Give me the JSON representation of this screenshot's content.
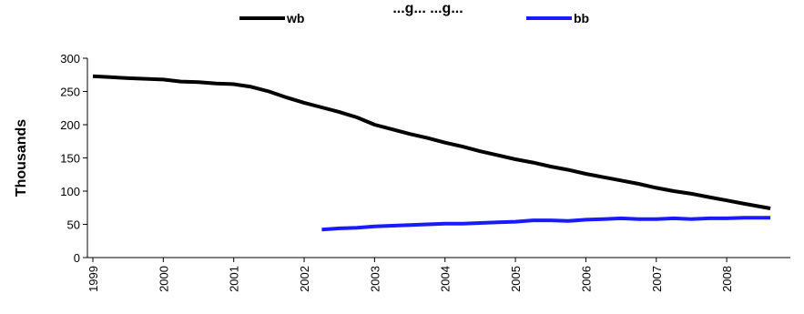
{
  "chart_data": {
    "type": "line",
    "title": "...g... ...g...",
    "ylabel": "Thousands",
    "xlabel": "",
    "ylim": [
      0,
      300
    ],
    "yticks": [
      "0",
      "50",
      "100",
      "150",
      "200",
      "250",
      "300"
    ],
    "xlim": [
      1999,
      2008.8
    ],
    "xticks": [
      "1999",
      "2000",
      "2001",
      "2002",
      "2003",
      "2004",
      "2005",
      "2006",
      "2007",
      "2008"
    ],
    "grid": false,
    "legend_position": "top",
    "series": [
      {
        "name": "wb",
        "color": "#000000",
        "x": [
          1999.0,
          1999.5,
          2000.0,
          2000.25,
          2000.5,
          2000.75,
          2001.0,
          2001.25,
          2001.5,
          2001.75,
          2002.0,
          2002.25,
          2002.5,
          2002.75,
          2003.0,
          2003.25,
          2003.5,
          2003.75,
          2004.0,
          2004.25,
          2004.5,
          2004.75,
          2005.0,
          2005.25,
          2005.5,
          2005.75,
          2006.0,
          2006.25,
          2006.5,
          2006.75,
          2007.0,
          2007.25,
          2007.5,
          2007.75,
          2008.0,
          2008.25,
          2008.62
        ],
        "values": [
          273,
          270,
          268,
          265,
          264,
          262,
          261,
          257,
          250,
          241,
          233,
          226,
          219,
          211,
          200,
          193,
          186,
          180,
          173,
          167,
          160,
          154,
          148,
          143,
          137,
          132,
          126,
          121,
          116,
          111,
          105,
          100,
          96,
          91,
          86,
          81,
          74
        ]
      },
      {
        "name": "bb",
        "color": "#1a1aff",
        "x": [
          2002.25,
          2002.5,
          2002.75,
          2003.0,
          2003.25,
          2003.5,
          2003.75,
          2004.0,
          2004.25,
          2004.5,
          2004.75,
          2005.0,
          2005.25,
          2005.5,
          2005.75,
          2006.0,
          2006.25,
          2006.5,
          2006.75,
          2007.0,
          2007.25,
          2007.5,
          2007.75,
          2008.0,
          2008.25,
          2008.62
        ],
        "values": [
          42,
          44,
          45,
          47,
          48,
          49,
          50,
          51,
          51,
          52,
          53,
          54,
          56,
          56,
          55,
          57,
          58,
          59,
          58,
          58,
          59,
          58,
          59,
          59,
          60,
          60
        ]
      }
    ]
  }
}
